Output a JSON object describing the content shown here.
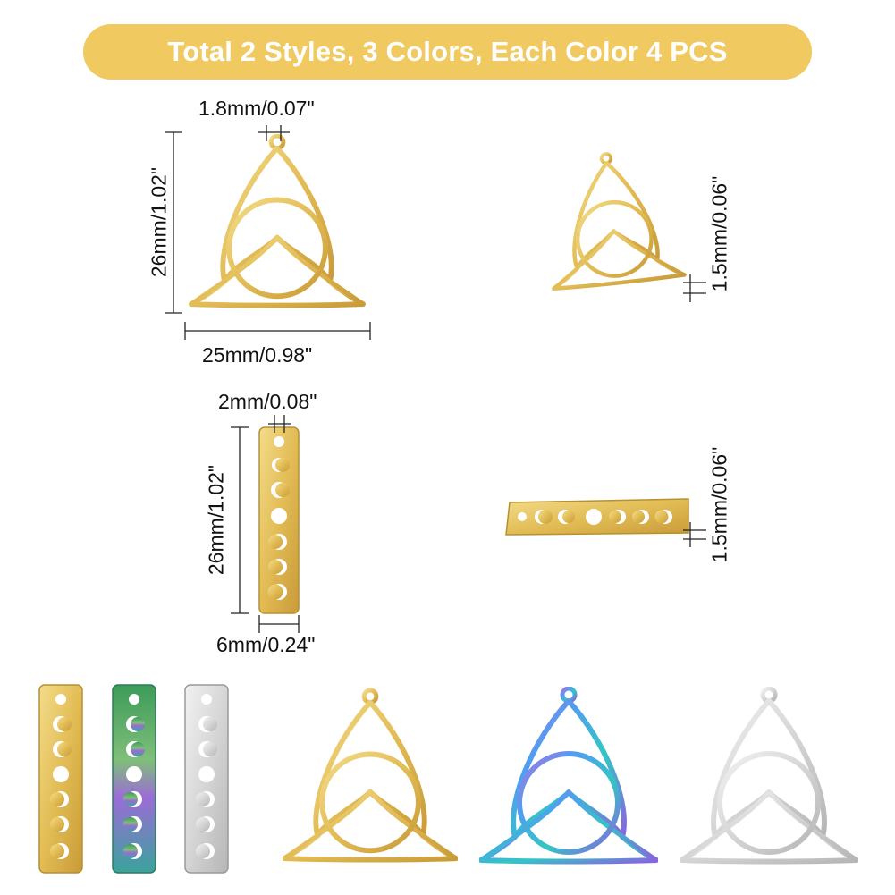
{
  "banner": {
    "text": "Total 2 Styles, 3 Colors, Each Color 4 PCS",
    "color": "#f0c960"
  },
  "dimensions": {
    "triangle_hole": "1.8mm/0.07\"",
    "triangle_height": "26mm/1.02\"",
    "triangle_width": "25mm/0.98\"",
    "triangle_thickness": "1.5mm/0.06\"",
    "bar_hole": "2mm/0.08\"",
    "bar_height": "26mm/1.02\"",
    "bar_width": "6mm/0.24\"",
    "bar_thickness": "1.5mm/0.06\""
  },
  "colors": {
    "gold": "#e6c25a",
    "gold_dark": "#b8902e",
    "silver": "#d9d9d9",
    "silver_dark": "#9a9a9a",
    "rainbow": [
      "#5f9cf0",
      "#2ec7c9",
      "#9b6be8",
      "#4fa8e8"
    ],
    "rainbow_bar": [
      "#3f9a5a",
      "#6ab07a",
      "#8a6ad0",
      "#3aa6a0"
    ]
  },
  "items": {
    "styles": [
      "triquetra-pendant",
      "moon-phase-bar-pendant"
    ],
    "finishes": [
      "gold",
      "rainbow",
      "silver"
    ]
  }
}
